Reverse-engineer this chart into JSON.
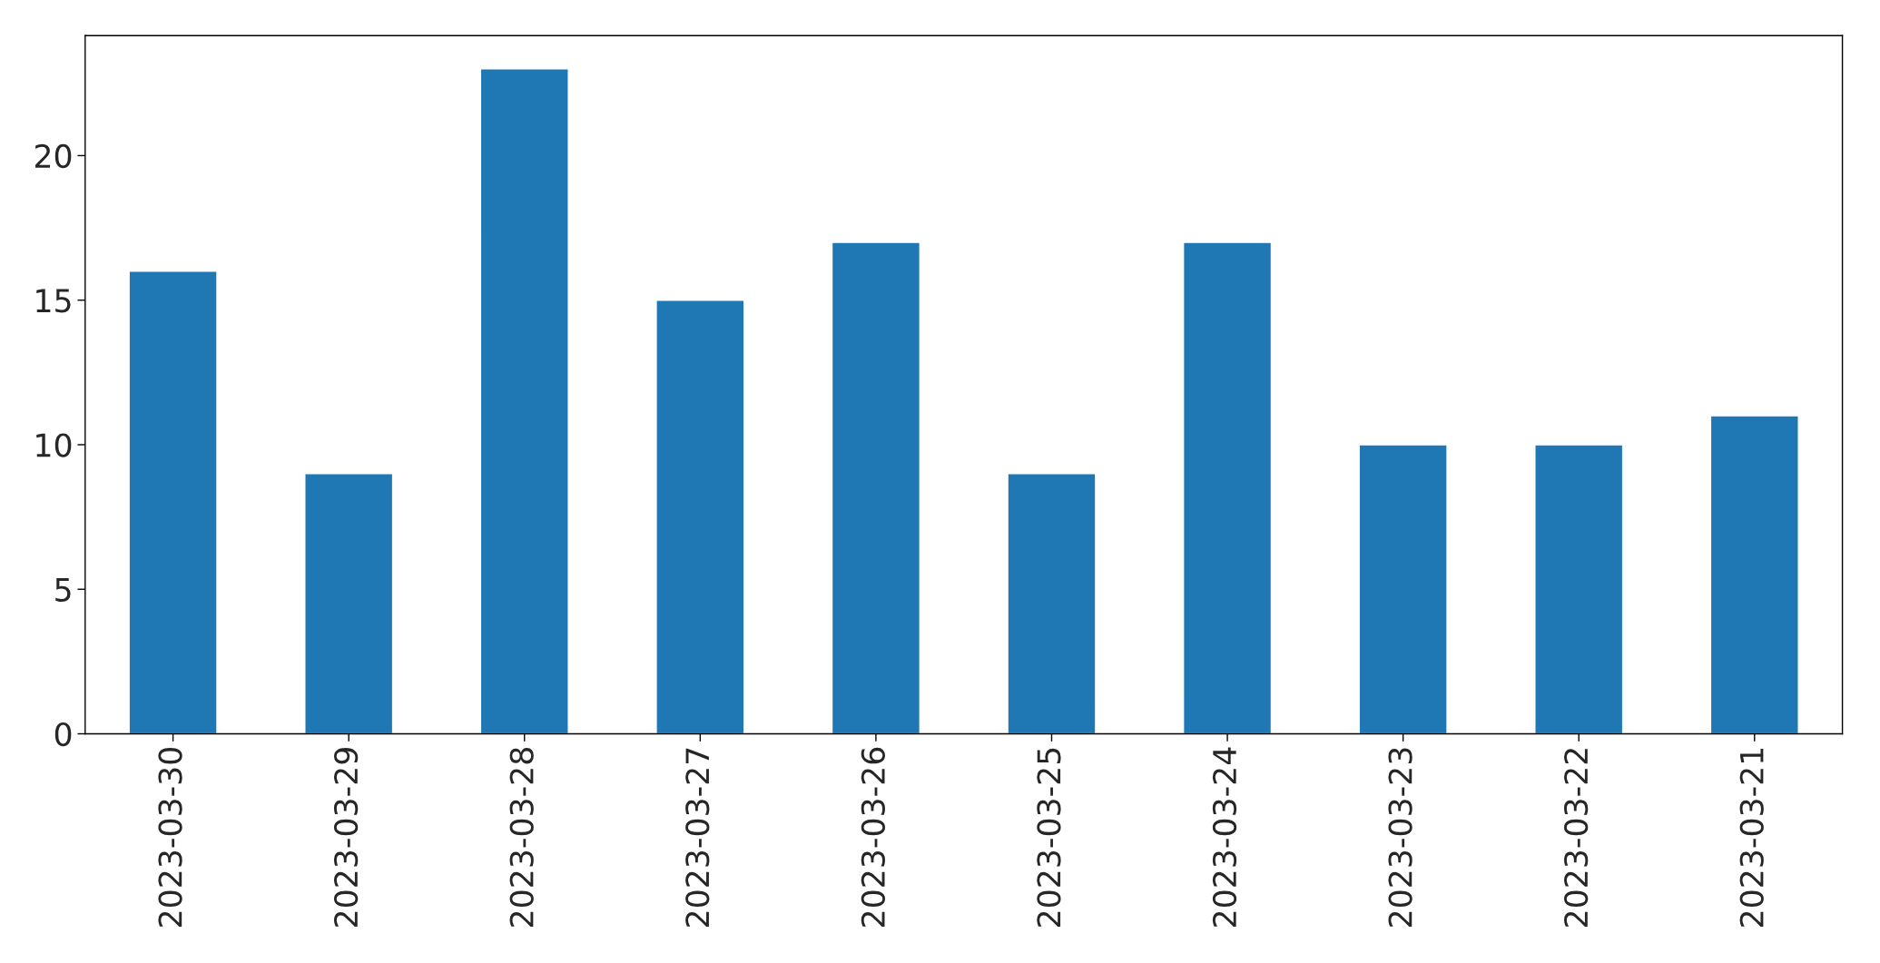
{
  "chart_data": {
    "type": "bar",
    "categories": [
      "2023-03-30",
      "2023-03-29",
      "2023-03-28",
      "2023-03-27",
      "2023-03-26",
      "2023-03-25",
      "2023-03-24",
      "2023-03-23",
      "2023-03-22",
      "2023-03-21"
    ],
    "values": [
      16,
      9,
      23,
      15,
      17,
      9,
      17,
      10,
      10,
      11
    ],
    "color": "#1f77b4",
    "ylim": [
      0,
      24.15
    ],
    "yticks": [
      0,
      5,
      10,
      15,
      20
    ],
    "grid": false,
    "legend": false
  }
}
